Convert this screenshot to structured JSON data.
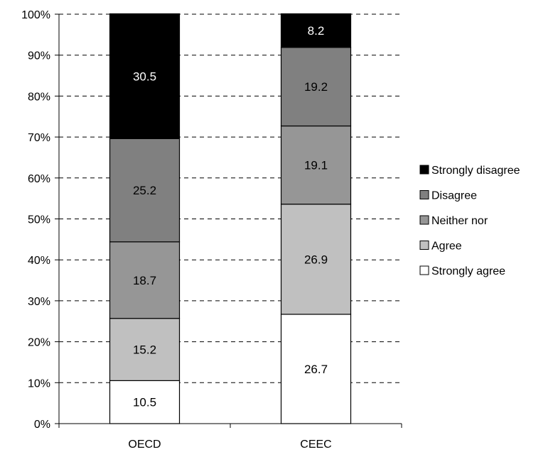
{
  "chart_data": {
    "type": "bar",
    "stacked": true,
    "categories": [
      "OECD",
      "CEEC"
    ],
    "series": [
      {
        "name": "Strongly agree",
        "values": [
          10.5,
          26.7
        ],
        "color": "#ffffff",
        "label_color": "#000000"
      },
      {
        "name": "Agree",
        "values": [
          15.2,
          26.9
        ],
        "color": "#c0c0c0",
        "label_color": "#000000"
      },
      {
        "name": "Neither nor",
        "values": [
          18.7,
          19.1
        ],
        "color": "#969696",
        "label_color": "#000000"
      },
      {
        "name": "Disagree",
        "values": [
          25.2,
          19.2
        ],
        "color": "#808080",
        "label_color": "#000000"
      },
      {
        "name": "Strongly disagree",
        "values": [
          30.5,
          8.2
        ],
        "color": "#000000",
        "label_color": "#ffffff"
      }
    ],
    "yticks": [
      "0%",
      "10%",
      "20%",
      "30%",
      "40%",
      "50%",
      "60%",
      "70%",
      "80%",
      "90%",
      "100%"
    ],
    "ylim": [
      0,
      100
    ],
    "grid": true,
    "legend_position": "right",
    "xlabel": "",
    "ylabel": ""
  }
}
